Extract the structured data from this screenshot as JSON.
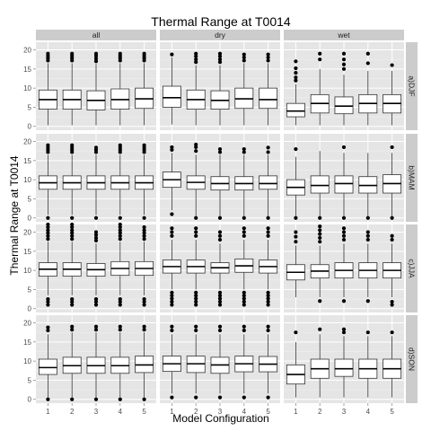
{
  "chart_data": {
    "type": "boxplot",
    "title": "Thermal Range at T0014",
    "xlabel": "Model Configuration",
    "ylabel": "Thermal Range at T0014",
    "categories": [
      "1",
      "2",
      "3",
      "4",
      "5"
    ],
    "columns": [
      "all",
      "dry",
      "wet"
    ],
    "rows": [
      "a)DJF",
      "b)MAM",
      "c)JJA",
      "d)SON"
    ],
    "ylim": [
      -1,
      22
    ],
    "yticks": [
      0,
      5,
      10,
      15,
      20
    ],
    "grid": true,
    "panels": [
      {
        "row": "a)DJF",
        "col": "all",
        "boxes": [
          {
            "cat": "1",
            "q1": 4.5,
            "median": 7,
            "q3": 9.5,
            "whislo": 0.3,
            "whishi": 16.5,
            "outliers": [
              17.2,
              17.8,
              18.4,
              19
            ]
          },
          {
            "cat": "2",
            "q1": 4.5,
            "median": 7,
            "q3": 9.5,
            "whislo": 0.3,
            "whishi": 16.5,
            "outliers": [
              17.2,
              17.8,
              18.4,
              19
            ]
          },
          {
            "cat": "3",
            "q1": 4.3,
            "median": 6.8,
            "q3": 9.3,
            "whislo": 0.3,
            "whishi": 16.3,
            "outliers": [
              17,
              17.7,
              18.4,
              19
            ]
          },
          {
            "cat": "4",
            "q1": 4.5,
            "median": 7,
            "q3": 9.8,
            "whislo": 0.3,
            "whishi": 16.5,
            "outliers": [
              17.2,
              17.8,
              18.4,
              19
            ]
          },
          {
            "cat": "5",
            "q1": 4.7,
            "median": 7.2,
            "q3": 10,
            "whislo": 0.3,
            "whishi": 16.5,
            "outliers": [
              17.2,
              17.8,
              18.4,
              19
            ]
          }
        ]
      },
      {
        "row": "a)DJF",
        "col": "dry",
        "boxes": [
          {
            "cat": "1",
            "q1": 5,
            "median": 7.5,
            "q3": 10.5,
            "whislo": 0.5,
            "whishi": 18,
            "outliers": [
              18.8
            ]
          },
          {
            "cat": "2",
            "q1": 4.5,
            "median": 7,
            "q3": 9.5,
            "whislo": 0.3,
            "whishi": 16,
            "outliers": [
              16.8,
              17.5,
              18.3,
              19
            ]
          },
          {
            "cat": "3",
            "q1": 4.5,
            "median": 6.8,
            "q3": 9.3,
            "whislo": 0.3,
            "whishi": 16,
            "outliers": [
              16.8,
              17.5,
              18.3,
              19
            ]
          },
          {
            "cat": "4",
            "q1": 4.7,
            "median": 7.2,
            "q3": 10,
            "whislo": 0.3,
            "whishi": 16.5,
            "outliers": [
              17.2,
              18,
              18.8
            ]
          },
          {
            "cat": "5",
            "q1": 4.7,
            "median": 7,
            "q3": 10,
            "whislo": 0.3,
            "whishi": 16.5,
            "outliers": [
              17.2,
              18,
              18.8
            ]
          }
        ]
      },
      {
        "row": "a)DJF",
        "col": "wet",
        "boxes": [
          {
            "cat": "1",
            "q1": 2.5,
            "median": 4,
            "q3": 6,
            "whislo": 0.3,
            "whishi": 11,
            "outliers": [
              12,
              12.8,
              14,
              15.2,
              17
            ]
          },
          {
            "cat": "2",
            "q1": 3.5,
            "median": 6,
            "q3": 8.3,
            "whislo": 0.3,
            "whishi": 15,
            "outliers": [
              17.5,
              19
            ]
          },
          {
            "cat": "3",
            "q1": 3.3,
            "median": 5.3,
            "q3": 7.7,
            "whislo": 0.3,
            "whishi": 13.5,
            "outliers": [
              15,
              16.2,
              17.5,
              19
            ]
          },
          {
            "cat": "4",
            "q1": 3.5,
            "median": 6,
            "q3": 8.3,
            "whislo": 0.3,
            "whishi": 14.5,
            "outliers": [
              16.5,
              19
            ]
          },
          {
            "cat": "5",
            "q1": 3.5,
            "median": 6,
            "q3": 8.3,
            "whislo": 0.3,
            "whishi": 14.5,
            "outliers": [
              16
            ]
          }
        ]
      },
      {
        "row": "b)MAM",
        "col": "all",
        "boxes": [
          {
            "cat": "1",
            "q1": 7.5,
            "median": 9.2,
            "q3": 11,
            "whislo": 0.8,
            "whishi": 16.5,
            "outliers": [
              0,
              17.2,
              17.8,
              18.4,
              19
            ]
          },
          {
            "cat": "2",
            "q1": 7.5,
            "median": 9.2,
            "q3": 11,
            "whislo": 0.8,
            "whishi": 16.5,
            "outliers": [
              0,
              17.2,
              17.8,
              18.4,
              19
            ]
          },
          {
            "cat": "3",
            "q1": 7.5,
            "median": 9.2,
            "q3": 11,
            "whislo": 0.8,
            "whishi": 16.5,
            "outliers": [
              0,
              17.2,
              17.8,
              18.4
            ]
          },
          {
            "cat": "4",
            "q1": 7.5,
            "median": 9.2,
            "q3": 11,
            "whislo": 0.8,
            "whishi": 16.5,
            "outliers": [
              0,
              17.2,
              17.8,
              18.4,
              19
            ]
          },
          {
            "cat": "5",
            "q1": 7.5,
            "median": 9.2,
            "q3": 11,
            "whislo": 0.8,
            "whishi": 16.5,
            "outliers": [
              0,
              17.2,
              17.8,
              18.4,
              19
            ]
          }
        ]
      },
      {
        "row": "b)MAM",
        "col": "dry",
        "boxes": [
          {
            "cat": "1",
            "q1": 8,
            "median": 10,
            "q3": 12,
            "whislo": 2,
            "whishi": 17,
            "outliers": [
              1,
              17.8,
              18.5
            ]
          },
          {
            "cat": "2",
            "q1": 7.5,
            "median": 9.3,
            "q3": 11,
            "whislo": 0.5,
            "whishi": 16.5,
            "outliers": [
              0,
              17.5,
              18.5,
              19.2
            ]
          },
          {
            "cat": "3",
            "q1": 7.3,
            "median": 9,
            "q3": 10.8,
            "whislo": 0.5,
            "whishi": 16.5,
            "outliers": [
              0,
              17.2,
              18
            ]
          },
          {
            "cat": "4",
            "q1": 7.3,
            "median": 9,
            "q3": 10.8,
            "whislo": 0.5,
            "whishi": 16.5,
            "outliers": [
              0,
              17.2,
              18
            ]
          },
          {
            "cat": "5",
            "q1": 7.5,
            "median": 9,
            "q3": 11,
            "whislo": 0.5,
            "whishi": 16.5,
            "outliers": [
              0,
              17.2,
              18.4
            ]
          }
        ]
      },
      {
        "row": "b)MAM",
        "col": "wet",
        "boxes": [
          {
            "cat": "1",
            "q1": 6,
            "median": 8,
            "q3": 10,
            "whislo": 0.5,
            "whishi": 16,
            "outliers": [
              0,
              18
            ]
          },
          {
            "cat": "2",
            "q1": 6.5,
            "median": 8.5,
            "q3": 11,
            "whislo": 0.5,
            "whishi": 17.5,
            "outliers": [
              0
            ]
          },
          {
            "cat": "3",
            "q1": 6.5,
            "median": 9,
            "q3": 11,
            "whislo": 0.5,
            "whishi": 17,
            "outliers": [
              0,
              18.5
            ]
          },
          {
            "cat": "4",
            "q1": 6.5,
            "median": 8.5,
            "q3": 10.8,
            "whislo": 0.5,
            "whishi": 17,
            "outliers": [
              0
            ]
          },
          {
            "cat": "5",
            "q1": 6.5,
            "median": 9,
            "q3": 11.3,
            "whislo": 0.5,
            "whishi": 17,
            "outliers": [
              0,
              18.5
            ]
          }
        ]
      },
      {
        "row": "c)JJA",
        "col": "all",
        "boxes": [
          {
            "cat": "1",
            "q1": 8.5,
            "median": 10.3,
            "q3": 12,
            "whislo": 3.5,
            "whishi": 17.5,
            "outliers": [
              1,
              1.8,
              2.5,
              18.2,
              19,
              19.8,
              20.5,
              21.3,
              22
            ]
          },
          {
            "cat": "2",
            "q1": 8.5,
            "median": 10.3,
            "q3": 12,
            "whislo": 3.5,
            "whishi": 17.5,
            "outliers": [
              1,
              1.8,
              2.5,
              18.2,
              19,
              19.8,
              20.5,
              21.3,
              22
            ]
          },
          {
            "cat": "3",
            "q1": 8.5,
            "median": 10.2,
            "q3": 11.8,
            "whislo": 3.5,
            "whishi": 17,
            "outliers": [
              1,
              1.8,
              2.5,
              17.8,
              18.5,
              19.3,
              20
            ]
          },
          {
            "cat": "4",
            "q1": 8.7,
            "median": 10.5,
            "q3": 12.3,
            "whislo": 3.5,
            "whishi": 17.5,
            "outliers": [
              1,
              1.8,
              2.5,
              18.2,
              19,
              19.8,
              20.5,
              21.3,
              22
            ]
          },
          {
            "cat": "5",
            "q1": 8.7,
            "median": 10.5,
            "q3": 12.3,
            "whislo": 3.5,
            "whishi": 17.5,
            "outliers": [
              1,
              1.8,
              2.5,
              18.2,
              19,
              19.8,
              20.5,
              21.3
            ]
          }
        ]
      },
      {
        "row": "c)JJA",
        "col": "dry",
        "boxes": [
          {
            "cat": "1",
            "q1": 9.3,
            "median": 11,
            "q3": 12.7,
            "whislo": 5,
            "whishi": 18,
            "outliers": [
              1,
              1.8,
              2.6,
              3.4,
              4.2,
              19,
              20,
              21
            ]
          },
          {
            "cat": "2",
            "q1": 9.3,
            "median": 11,
            "q3": 12.7,
            "whislo": 5,
            "whishi": 18,
            "outliers": [
              1,
              1.8,
              2.6,
              3.4,
              4.2,
              19,
              20,
              21
            ]
          },
          {
            "cat": "3",
            "q1": 9.3,
            "median": 10.7,
            "q3": 12,
            "whislo": 5,
            "whishi": 17,
            "outliers": [
              1,
              1.8,
              2.6,
              3.4,
              4.2,
              18,
              19,
              20
            ]
          },
          {
            "cat": "4",
            "q1": 9.5,
            "median": 11.2,
            "q3": 13,
            "whislo": 5,
            "whishi": 18,
            "outliers": [
              1,
              1.8,
              2.6,
              3.4,
              4.2,
              19,
              20,
              21
            ]
          },
          {
            "cat": "5",
            "q1": 9.3,
            "median": 11,
            "q3": 12.7,
            "whislo": 5,
            "whishi": 18,
            "outliers": [
              1,
              1.8,
              2.6,
              3.4,
              4.2,
              19,
              20,
              21
            ]
          }
        ]
      },
      {
        "row": "c)JJA",
        "col": "wet",
        "boxes": [
          {
            "cat": "1",
            "q1": 7.5,
            "median": 9.5,
            "q3": 11.5,
            "whislo": 3,
            "whishi": 16.5,
            "outliers": [
              17.5,
              18.8,
              20
            ]
          },
          {
            "cat": "2",
            "q1": 8,
            "median": 9.8,
            "q3": 11.5,
            "whislo": 3,
            "whishi": 16.5,
            "outliers": [
              2,
              17.5,
              18.5,
              19.5,
              20.5,
              21.5
            ]
          },
          {
            "cat": "3",
            "q1": 8,
            "median": 10,
            "q3": 12,
            "whislo": 3,
            "whishi": 17,
            "outliers": [
              2,
              18,
              19,
              20,
              21
            ]
          },
          {
            "cat": "4",
            "q1": 8,
            "median": 10,
            "q3": 12,
            "whislo": 3,
            "whishi": 17,
            "outliers": [
              2,
              18,
              19,
              20
            ]
          },
          {
            "cat": "5",
            "q1": 8,
            "median": 10,
            "q3": 12,
            "whislo": 3,
            "whishi": 17,
            "outliers": [
              1,
              1.8,
              18,
              19
            ]
          }
        ]
      },
      {
        "row": "d)SON",
        "col": "all",
        "boxes": [
          {
            "cat": "1",
            "q1": 6.5,
            "median": 8.3,
            "q3": 10.5,
            "whislo": 0.5,
            "whishi": 17,
            "outliers": [
              0,
              18,
              18.8
            ]
          },
          {
            "cat": "2",
            "q1": 6.8,
            "median": 8.8,
            "q3": 11,
            "whislo": 0.5,
            "whishi": 17.5,
            "outliers": [
              0,
              18.2,
              19
            ]
          },
          {
            "cat": "3",
            "q1": 6.8,
            "median": 8.8,
            "q3": 11,
            "whislo": 0.5,
            "whishi": 17.5,
            "outliers": [
              0,
              18.2,
              19
            ]
          },
          {
            "cat": "4",
            "q1": 6.8,
            "median": 8.8,
            "q3": 11,
            "whislo": 0.5,
            "whishi": 17.5,
            "outliers": [
              0,
              18.2,
              19
            ]
          },
          {
            "cat": "5",
            "q1": 7,
            "median": 9,
            "q3": 11.3,
            "whislo": 0.5,
            "whishi": 17.5,
            "outliers": [
              0,
              18.2,
              19
            ]
          }
        ]
      },
      {
        "row": "d)SON",
        "col": "dry",
        "boxes": [
          {
            "cat": "1",
            "q1": 7.3,
            "median": 9.3,
            "q3": 11.3,
            "whislo": 1.5,
            "whishi": 17,
            "outliers": [
              0.5,
              18,
              19
            ]
          },
          {
            "cat": "2",
            "q1": 7,
            "median": 9.3,
            "q3": 11.3,
            "whislo": 1.5,
            "whishi": 17,
            "outliers": [
              0.5,
              18,
              19
            ]
          },
          {
            "cat": "3",
            "q1": 6.8,
            "median": 9,
            "q3": 11,
            "whislo": 1.5,
            "whishi": 17,
            "outliers": [
              0.5,
              18,
              19
            ]
          },
          {
            "cat": "4",
            "q1": 7.2,
            "median": 9.3,
            "q3": 11.3,
            "whislo": 1.5,
            "whishi": 17,
            "outliers": [
              0.5,
              18,
              19
            ]
          },
          {
            "cat": "5",
            "q1": 7.2,
            "median": 9.2,
            "q3": 11.2,
            "whislo": 1.5,
            "whishi": 17,
            "outliers": [
              0.5,
              18,
              19
            ]
          }
        ]
      },
      {
        "row": "d)SON",
        "col": "wet",
        "boxes": [
          {
            "cat": "1",
            "q1": 4,
            "median": 6.5,
            "q3": 9,
            "whislo": 0.5,
            "whishi": 15,
            "outliers": [
              17.5
            ]
          },
          {
            "cat": "2",
            "q1": 5.5,
            "median": 8,
            "q3": 10.5,
            "whislo": 0.5,
            "whishi": 17,
            "outliers": [
              18.3
            ]
          },
          {
            "cat": "3",
            "q1": 6,
            "median": 8,
            "q3": 10.5,
            "whislo": 0.5,
            "whishi": 16.5,
            "outliers": [
              17.5,
              18.3
            ]
          },
          {
            "cat": "4",
            "q1": 5.5,
            "median": 8,
            "q3": 10.5,
            "whislo": 0.5,
            "whishi": 16.5,
            "outliers": [
              17.5
            ]
          },
          {
            "cat": "5",
            "q1": 5.5,
            "median": 8,
            "q3": 10.5,
            "whislo": 0.5,
            "whishi": 16.5,
            "outliers": [
              17.5
            ]
          }
        ]
      }
    ]
  }
}
